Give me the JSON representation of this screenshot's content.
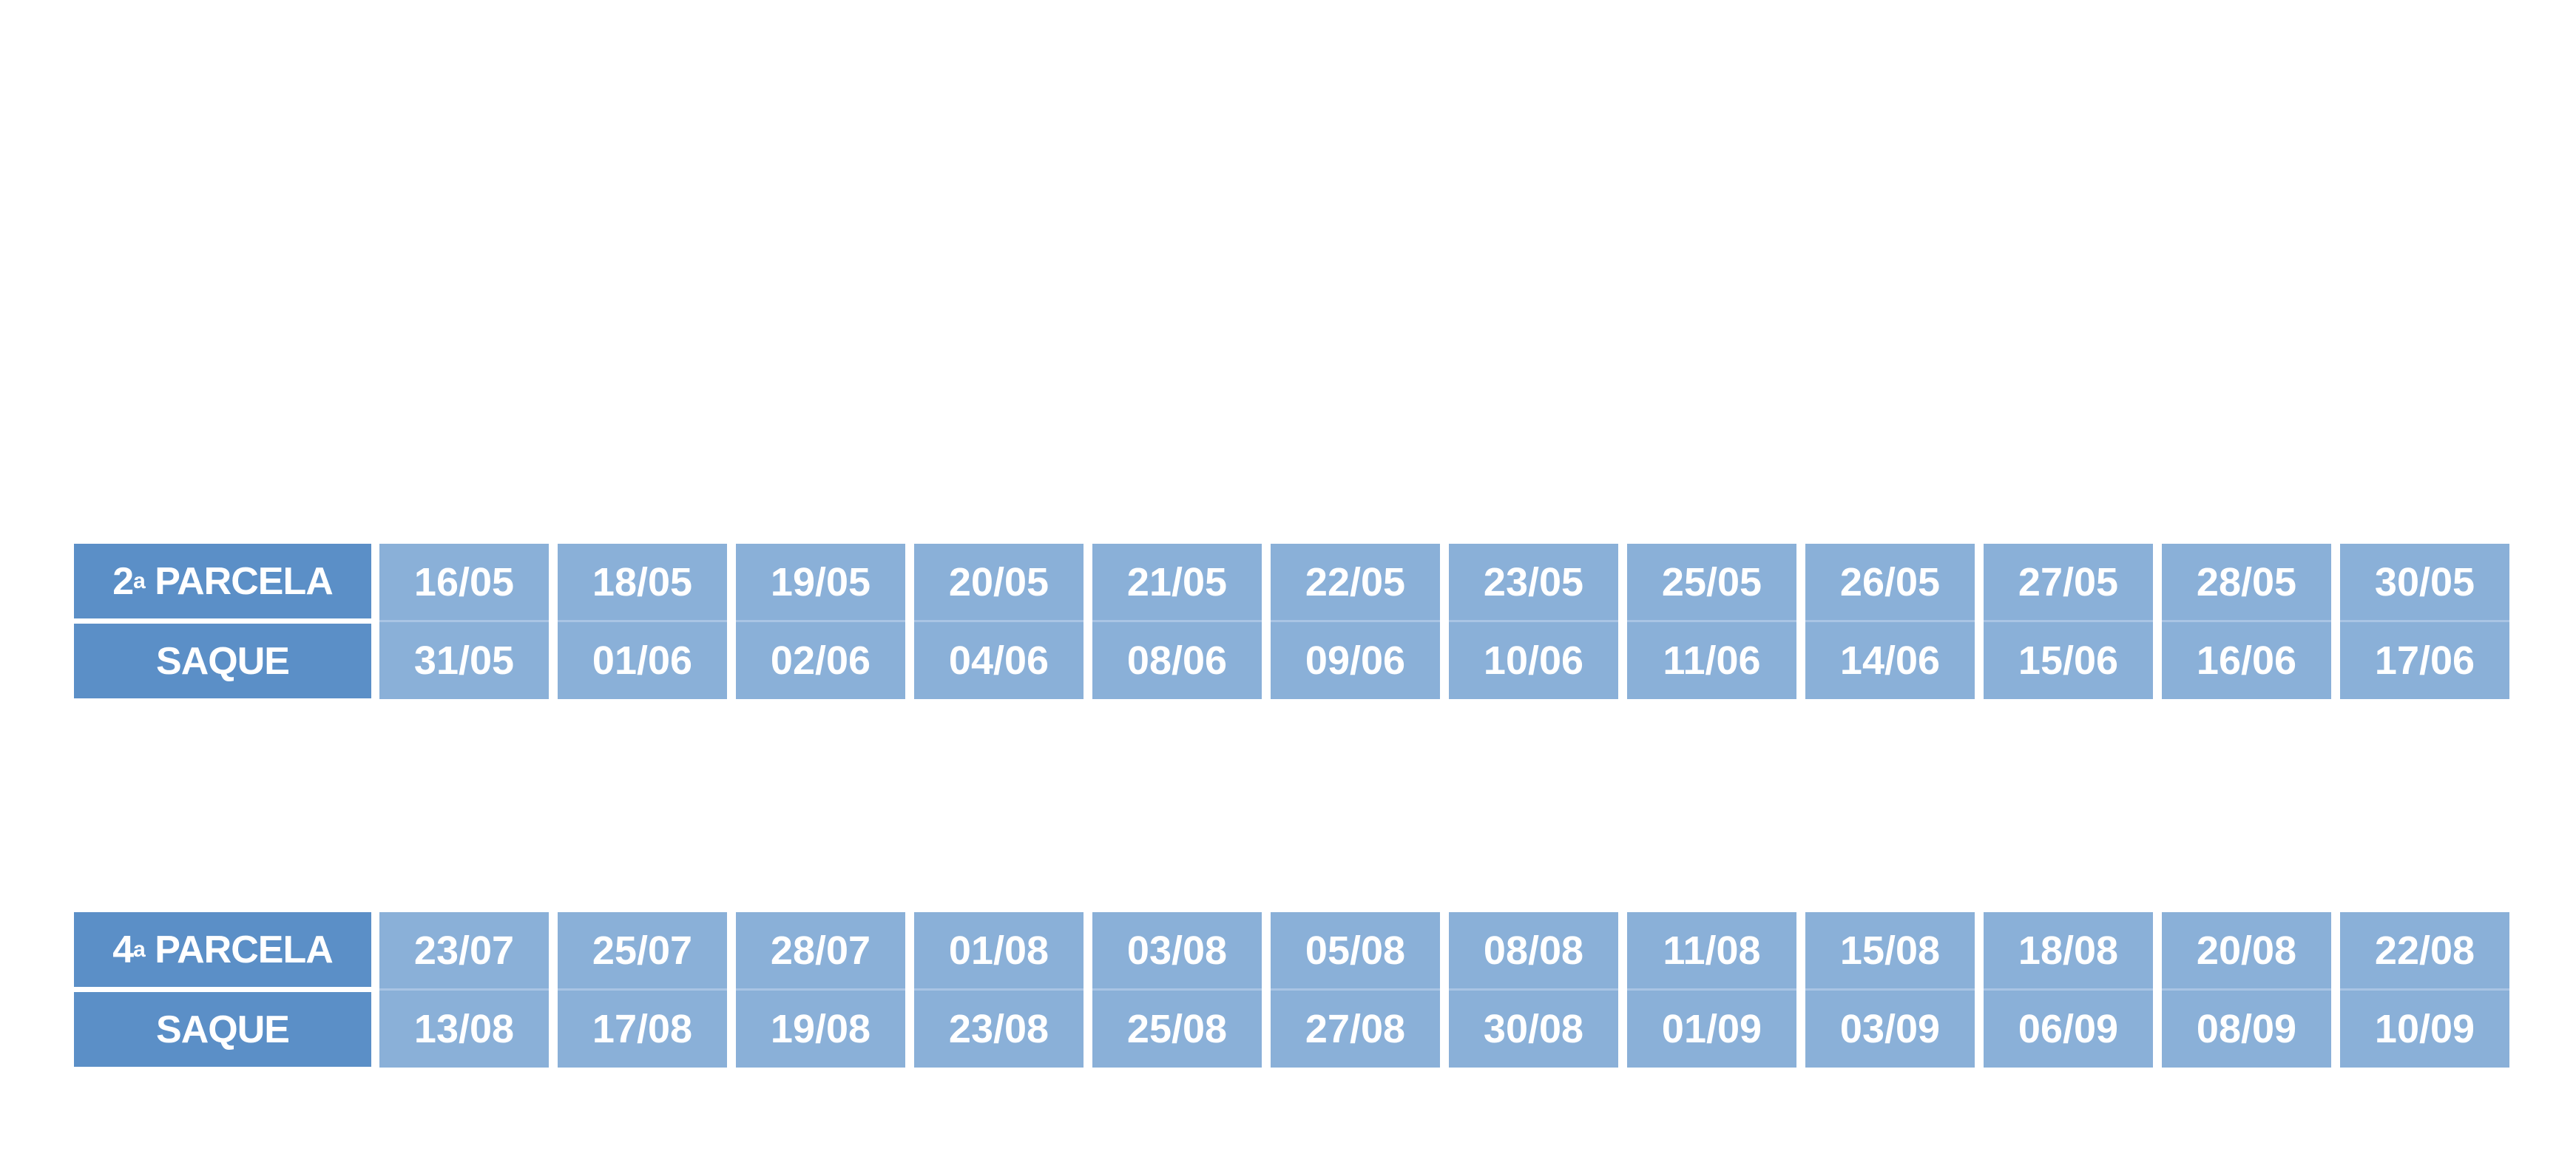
{
  "colors": {
    "label_bg": "#5b8fc7",
    "cell_bg": "#8ab0d8",
    "text": "#ffffff"
  },
  "tables": [
    {
      "parcela_number": "2",
      "parcela_ordinal": "a",
      "parcela_word": "PARCELA",
      "saque_label": "SAQUE",
      "parcela_dates": [
        "16/05",
        "18/05",
        "19/05",
        "20/05",
        "21/05",
        "22/05",
        "23/05",
        "25/05",
        "26/05",
        "27/05",
        "28/05",
        "30/05"
      ],
      "saque_dates": [
        "31/05",
        "01/06",
        "02/06",
        "04/06",
        "08/06",
        "09/06",
        "10/06",
        "11/06",
        "14/06",
        "15/06",
        "16/06",
        "17/06"
      ]
    },
    {
      "parcela_number": "4",
      "parcela_ordinal": "a",
      "parcela_word": "PARCELA",
      "saque_label": "SAQUE",
      "parcela_dates": [
        "23/07",
        "25/07",
        "28/07",
        "01/08",
        "03/08",
        "05/08",
        "08/08",
        "11/08",
        "15/08",
        "18/08",
        "20/08",
        "22/08"
      ],
      "saque_dates": [
        "13/08",
        "17/08",
        "19/08",
        "23/08",
        "25/08",
        "27/08",
        "30/08",
        "01/09",
        "03/09",
        "06/09",
        "08/09",
        "10/09"
      ]
    }
  ]
}
